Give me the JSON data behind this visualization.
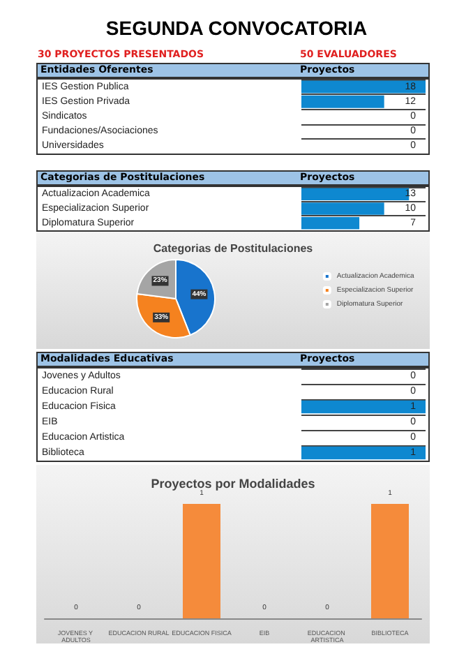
{
  "chart_data": [
    {
      "type": "bar",
      "orientation": "horizontal",
      "title": "SEGUNDA CONVOCATORIA",
      "annotations": [
        "30 PROYECTOS PRESENTADOS",
        "50 EVALUADORES"
      ],
      "ylabel": "Entidades Oferentes",
      "xlabel": "Proyectos",
      "categories": [
        "IES Gestion Publica",
        "IES Gestion Privada",
        "Sindicatos",
        "Fundaciones/Asociaciones",
        "Universidades"
      ],
      "values": [
        18,
        12,
        0,
        0,
        0
      ],
      "color": "#0e88d0",
      "data_labels": true,
      "tick_labels": "y"
    },
    {
      "type": "bar",
      "orientation": "horizontal",
      "ylabel": "Categorias de Postitulaciones",
      "xlabel": "Proyectos",
      "categories": [
        "Actualizacion Academica",
        "Especializacion Superior",
        "Diplomatura Superior"
      ],
      "values": [
        13,
        10,
        7
      ],
      "color": "#0e88d0",
      "data_labels": true,
      "tick_labels": "y"
    },
    {
      "type": "pie",
      "title": "Categorias de Postitulaciones",
      "categories": [
        "Actualizacion Academica",
        "Especializacion Superior",
        "Diplomatura Superior"
      ],
      "values": [
        44,
        33,
        23
      ],
      "value_labels": [
        "44%",
        "33%",
        "23%"
      ],
      "colors": [
        "#1874cd",
        "#f5821f",
        "#a5a5a5"
      ],
      "legend": "right"
    },
    {
      "type": "bar",
      "orientation": "horizontal",
      "ylabel": "Modalidades Educativas",
      "xlabel": "Proyectos",
      "categories": [
        "Jovenes y Adultos",
        "Educacion Rural",
        "Educacion Fisica",
        "EIB",
        "Educacion Artistica",
        "Biblioteca"
      ],
      "values": [
        0,
        0,
        1,
        0,
        0,
        1
      ],
      "color": "#0e88d0",
      "data_labels": true,
      "tick_labels": "y"
    },
    {
      "type": "bar",
      "title": "Proyectos por Modalidades",
      "categories": [
        "JOVENES Y ADULTOS",
        "EDUCACION RURAL",
        "EDUCACION FISICA",
        "EIB",
        "EDUCACION ARTISTICA",
        "BIBLIOTECA"
      ],
      "values": [
        0,
        0,
        1,
        0,
        0,
        1
      ],
      "color": "#f58b3b",
      "data_labels": true,
      "tick_labels": "x"
    }
  ]
}
